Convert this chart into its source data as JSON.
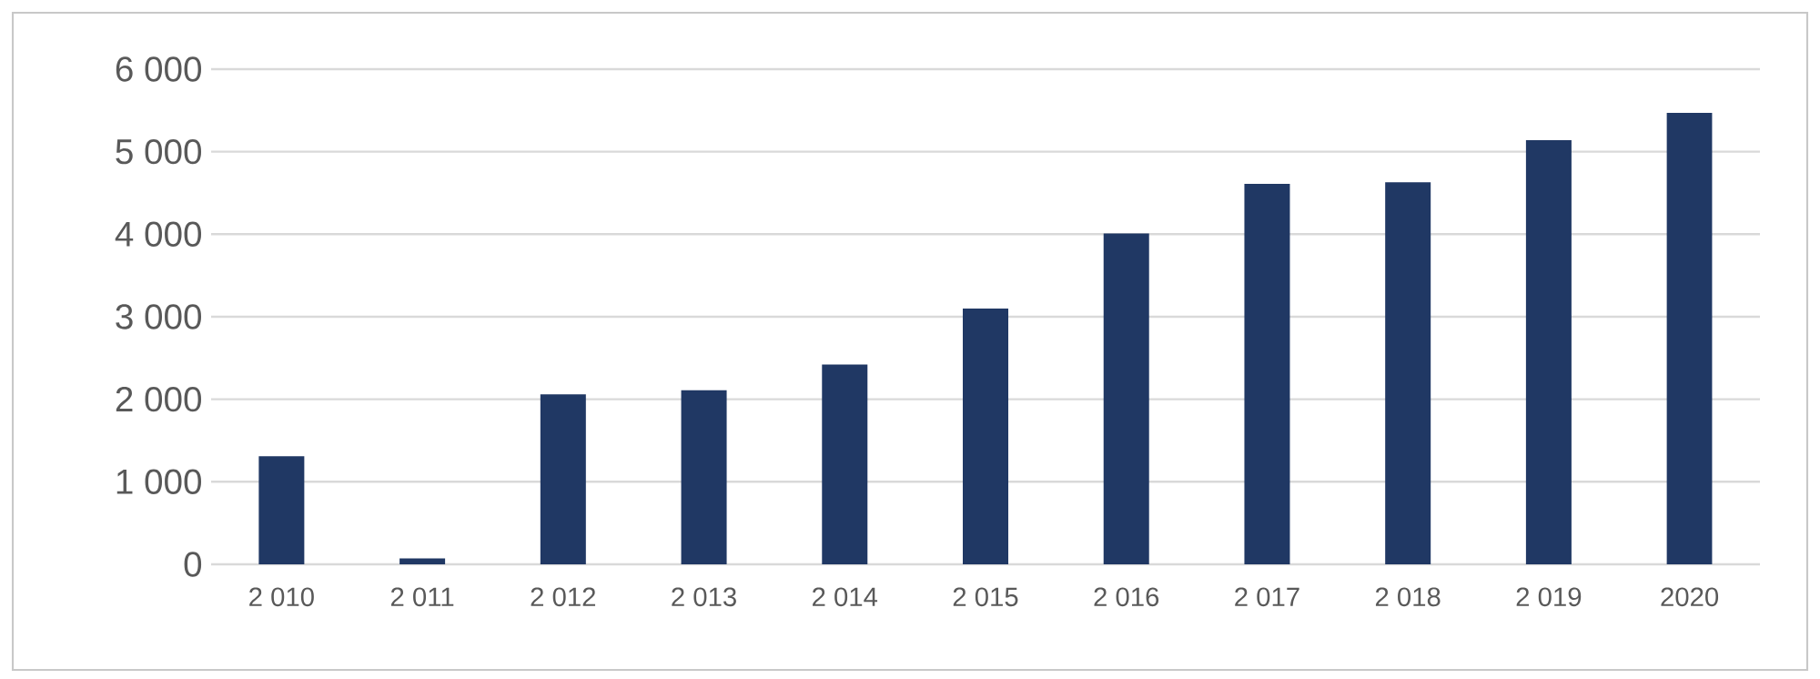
{
  "chart_data": {
    "type": "bar",
    "categories": [
      "2 010",
      "2 011",
      "2 012",
      "2 013",
      "2 014",
      "2 015",
      "2 016",
      "2 017",
      "2 018",
      "2 019",
      "2020"
    ],
    "values": [
      1310,
      70,
      2060,
      2110,
      2420,
      3100,
      4010,
      4610,
      4630,
      5140,
      5470
    ],
    "color": "#203864",
    "ylim": [
      0,
      6000
    ],
    "yticks": [
      {
        "value": 0,
        "label": "0"
      },
      {
        "value": 1000,
        "label": "1 000"
      },
      {
        "value": 2000,
        "label": "2 000"
      },
      {
        "value": 3000,
        "label": "3 000"
      },
      {
        "value": 4000,
        "label": "4 000"
      },
      {
        "value": 5000,
        "label": "5 000"
      },
      {
        "value": 6000,
        "label": "6 000"
      }
    ],
    "grid": "y"
  }
}
